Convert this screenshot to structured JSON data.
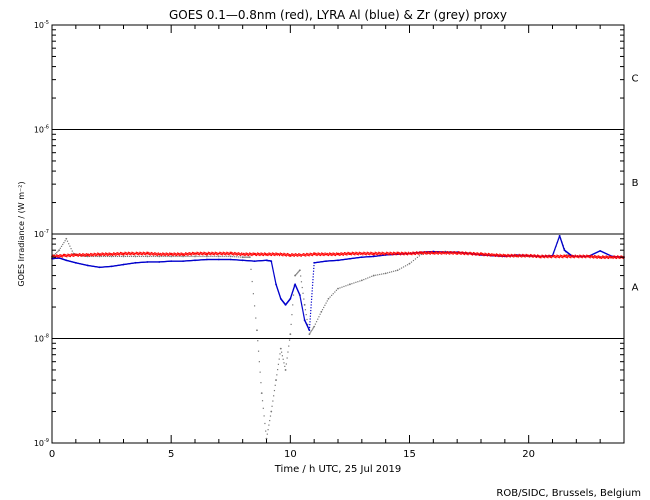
{
  "chart_data": {
    "type": "scatter",
    "title": "GOES 0.1—0.8nm (red), LYRA Al (blue) & Zr (grey) proxy",
    "xlabel": "Time / h UTC, 25 Jul 2019",
    "ylabel": "GOES Irradiance / (W m⁻²)",
    "footer": "ROB/SIDC, Brussels, Belgium",
    "xlim": [
      0,
      24
    ],
    "ylim": [
      1e-09,
      1e-05
    ],
    "yscale": "log",
    "x_ticks": [
      0,
      5,
      10,
      15,
      20
    ],
    "x_tick_labels": [
      "0",
      "5",
      "10",
      "15",
      "20"
    ],
    "y_ticks": [
      1e-09,
      1e-08,
      1e-07,
      1e-06,
      1e-05
    ],
    "y_tick_labels": [
      {
        "base": "10",
        "exp": "-9"
      },
      {
        "base": "10",
        "exp": "-8"
      },
      {
        "base": "10",
        "exp": "-7"
      },
      {
        "base": "10",
        "exp": "-6"
      },
      {
        "base": "10",
        "exp": "-5"
      }
    ],
    "class_lines": [
      1e-08,
      1e-07,
      1e-06
    ],
    "class_labels": [
      {
        "label": "A",
        "y": 3.16e-08
      },
      {
        "label": "B",
        "y": 3.16e-07
      },
      {
        "label": "C",
        "y": 3.16e-06
      }
    ],
    "series": [
      {
        "name": "GOES 0.1—0.8nm",
        "color": "#ff0000",
        "x": [
          0,
          0.5,
          1,
          1.5,
          2,
          2.5,
          3,
          3.5,
          4,
          4.5,
          5,
          5.5,
          6,
          6.5,
          7,
          7.5,
          8,
          8.5,
          9,
          9.5,
          10,
          10.5,
          11,
          11.5,
          12,
          12.5,
          13,
          13.5,
          14,
          14.5,
          15,
          15.5,
          16,
          16.5,
          17,
          17.5,
          18,
          18.5,
          19,
          19.5,
          20,
          20.5,
          21,
          21.5,
          22,
          22.5,
          23,
          23.5,
          24
        ],
        "y": [
          6.1e-08,
          6.2e-08,
          6.3e-08,
          6.3e-08,
          6.4e-08,
          6.4e-08,
          6.5e-08,
          6.5e-08,
          6.5e-08,
          6.4e-08,
          6.4e-08,
          6.4e-08,
          6.5e-08,
          6.5e-08,
          6.5e-08,
          6.5e-08,
          6.4e-08,
          6.4e-08,
          6.4e-08,
          6.4e-08,
          6.3e-08,
          6.3e-08,
          6.4e-08,
          6.4e-08,
          6.4e-08,
          6.5e-08,
          6.5e-08,
          6.5e-08,
          6.5e-08,
          6.5e-08,
          6.5e-08,
          6.6e-08,
          6.6e-08,
          6.6e-08,
          6.6e-08,
          6.5e-08,
          6.4e-08,
          6.3e-08,
          6.2e-08,
          6.2e-08,
          6.2e-08,
          6.1e-08,
          6.1e-08,
          6.1e-08,
          6.1e-08,
          6.1e-08,
          6e-08,
          6e-08,
          6e-08
        ]
      },
      {
        "name": "LYRA Al proxy",
        "color": "#0000cc",
        "x": [
          0,
          0.3,
          0.6,
          1,
          1.5,
          2,
          2.5,
          3,
          3.5,
          4,
          4.5,
          5,
          5.5,
          6,
          6.5,
          7,
          7.5,
          8,
          8.5,
          9,
          9.2,
          9.4,
          9.6,
          9.8,
          10,
          10.2,
          10.4,
          10.6,
          10.8,
          11,
          11.5,
          12,
          12.5,
          13,
          13.5,
          14,
          14.5,
          15,
          15.5,
          16,
          16.5,
          17,
          17.5,
          18,
          18.5,
          19,
          19.5,
          20,
          20.5,
          21,
          21.3,
          21.5,
          21.8,
          22,
          22.5,
          23,
          23.5,
          24
        ],
        "y": [
          5.8e-08,
          5.9e-08,
          5.6e-08,
          5.3e-08,
          5e-08,
          4.8e-08,
          4.9e-08,
          5.1e-08,
          5.3e-08,
          5.4e-08,
          5.4e-08,
          5.5e-08,
          5.5e-08,
          5.6e-08,
          5.7e-08,
          5.7e-08,
          5.7e-08,
          5.6e-08,
          5.5e-08,
          5.6e-08,
          5.5e-08,
          3.3e-08,
          2.4e-08,
          2.1e-08,
          2.4e-08,
          3.3e-08,
          2.6e-08,
          1.5e-08,
          1.2e-08,
          5.3e-08,
          5.5e-08,
          5.6e-08,
          5.8e-08,
          6e-08,
          6.1e-08,
          6.3e-08,
          6.4e-08,
          6.5e-08,
          6.7e-08,
          6.8e-08,
          6.7e-08,
          6.7e-08,
          6.5e-08,
          6.3e-08,
          6.2e-08,
          6.1e-08,
          6.3e-08,
          6.2e-08,
          6.1e-08,
          6.2e-08,
          9.6e-08,
          7e-08,
          6.2e-08,
          6.1e-08,
          6.1e-08,
          6.9e-08,
          6.1e-08,
          6e-08
        ]
      },
      {
        "name": "LYRA Zr proxy",
        "color": "#777777",
        "x": [
          0,
          0.3,
          0.6,
          0.9,
          1.2,
          1.5,
          2,
          2.5,
          3,
          3.5,
          4,
          4.5,
          5,
          5.5,
          6,
          6.5,
          7,
          7.5,
          8,
          8.3,
          8.6,
          8.8,
          9,
          9.2,
          9.4,
          9.6,
          9.8,
          10,
          10.2,
          10.4,
          10.6,
          10.8,
          11,
          11.3,
          11.6,
          12,
          12.5,
          13,
          13.5,
          14,
          14.5,
          15,
          15.5,
          16,
          16.5,
          17,
          17.5,
          18,
          18.5,
          19,
          19.5,
          20,
          20.5,
          21,
          21.3,
          21.6,
          22,
          22.5,
          23,
          23.5,
          24
        ],
        "y": [
          6e-08,
          7e-08,
          9e-08,
          6.5e-08,
          6.2e-08,
          6.1e-08,
          6.1e-08,
          6.1e-08,
          6.1e-08,
          6.1e-08,
          6.1e-08,
          6.1e-08,
          6.1e-08,
          6.1e-08,
          6.1e-08,
          6.1e-08,
          6.1e-08,
          6.1e-08,
          6e-08,
          6e-08,
          1.2e-08,
          3e-09,
          1.1e-09,
          2e-09,
          4e-09,
          8e-09,
          5e-09,
          1.1e-08,
          4e-08,
          4.5e-08,
          2.1e-08,
          1.1e-08,
          1.3e-08,
          1.8e-08,
          2.4e-08,
          3e-08,
          3.3e-08,
          3.6e-08,
          4e-08,
          4.2e-08,
          4.5e-08,
          5.2e-08,
          6.4e-08,
          6.6e-08,
          6.8e-08,
          6.7e-08,
          6.6e-08,
          6.4e-08,
          6.3e-08,
          6.2e-08,
          6.1e-08,
          6.1e-08,
          6.1e-08,
          6.1e-08,
          9.6e-08,
          6.3e-08,
          6.1e-08,
          6.1e-08,
          6e-08,
          6e-08,
          6e-08
        ]
      }
    ]
  }
}
